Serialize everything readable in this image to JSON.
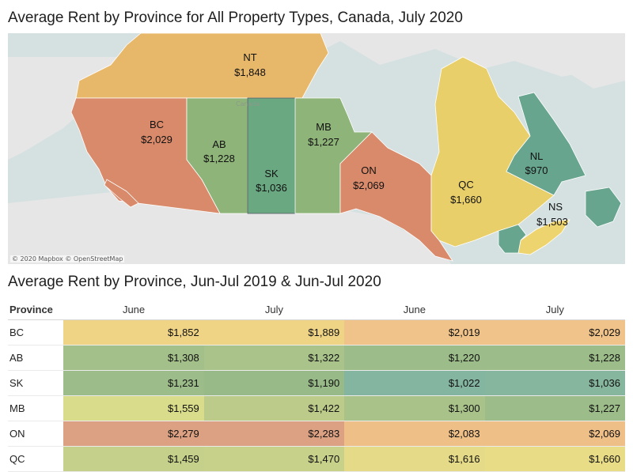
{
  "map_title": "Average Rent by Province for All Property Types, Canada, July 2020",
  "table_title": "Average Rent by Province, Jun-Jul 2019 & Jun-Jul 2020",
  "attribution": "© 2020 Mapbox © OpenStreetMap",
  "map": {
    "provinces": [
      {
        "code": "NT",
        "rent": "$1,848",
        "color": "#e8b86a"
      },
      {
        "code": "BC",
        "rent": "$2,029",
        "color": "#d98a6a"
      },
      {
        "code": "AB",
        "rent": "$1,228",
        "color": "#8fb479"
      },
      {
        "code": "SK",
        "rent": "$1,036",
        "color": "#6aa882"
      },
      {
        "code": "MB",
        "rent": "$1,227",
        "color": "#8fb479"
      },
      {
        "code": "ON",
        "rent": "$2,069",
        "color": "#d98a6a"
      },
      {
        "code": "QC",
        "rent": "$1,660",
        "color": "#e8cf6a"
      },
      {
        "code": "NL",
        "rent": "$970",
        "color": "#68a58f"
      },
      {
        "code": "NS",
        "rent": "$1,503",
        "color": "#eed46e"
      }
    ]
  },
  "table": {
    "header": {
      "province": "Province",
      "col1": "June",
      "col2": "July",
      "col3": "June",
      "col4": "July"
    },
    "rows": [
      {
        "province": "BC",
        "v1": "$1,852",
        "v2": "$1,889",
        "v3": "$2,019",
        "v4": "$2,029",
        "c1": "#efd486",
        "c2": "#efd486",
        "c3": "#efc38a",
        "c4": "#efc38a"
      },
      {
        "province": "AB",
        "v1": "$1,308",
        "v2": "$1,322",
        "v3": "$1,220",
        "v4": "$1,228",
        "c1": "#a4c08a",
        "c2": "#a9c38b",
        "c3": "#9cbd89",
        "c4": "#9cbd89"
      },
      {
        "province": "SK",
        "v1": "$1,231",
        "v2": "$1,190",
        "v3": "$1,022",
        "v4": "$1,036",
        "c1": "#9cbd89",
        "c2": "#97ba88",
        "c3": "#84b5a0",
        "c4": "#86b69d"
      },
      {
        "province": "MB",
        "v1": "$1,559",
        "v2": "$1,422",
        "v3": "$1,300",
        "v4": "$1,227",
        "c1": "#d9dc8b",
        "c2": "#bcca8a",
        "c3": "#a8c28a",
        "c4": "#9cbd89"
      },
      {
        "province": "ON",
        "v1": "$2,279",
        "v2": "$2,283",
        "v3": "$2,083",
        "v4": "$2,069",
        "c1": "#dca183",
        "c2": "#dca183",
        "c3": "#efbf88",
        "c4": "#efbf88"
      },
      {
        "province": "QC",
        "v1": "$1,459",
        "v2": "$1,470",
        "v3": "$1,616",
        "v4": "$1,660",
        "c1": "#c5d08a",
        "c2": "#c7d18a",
        "c3": "#e5da88",
        "c4": "#e9dc86"
      }
    ]
  }
}
